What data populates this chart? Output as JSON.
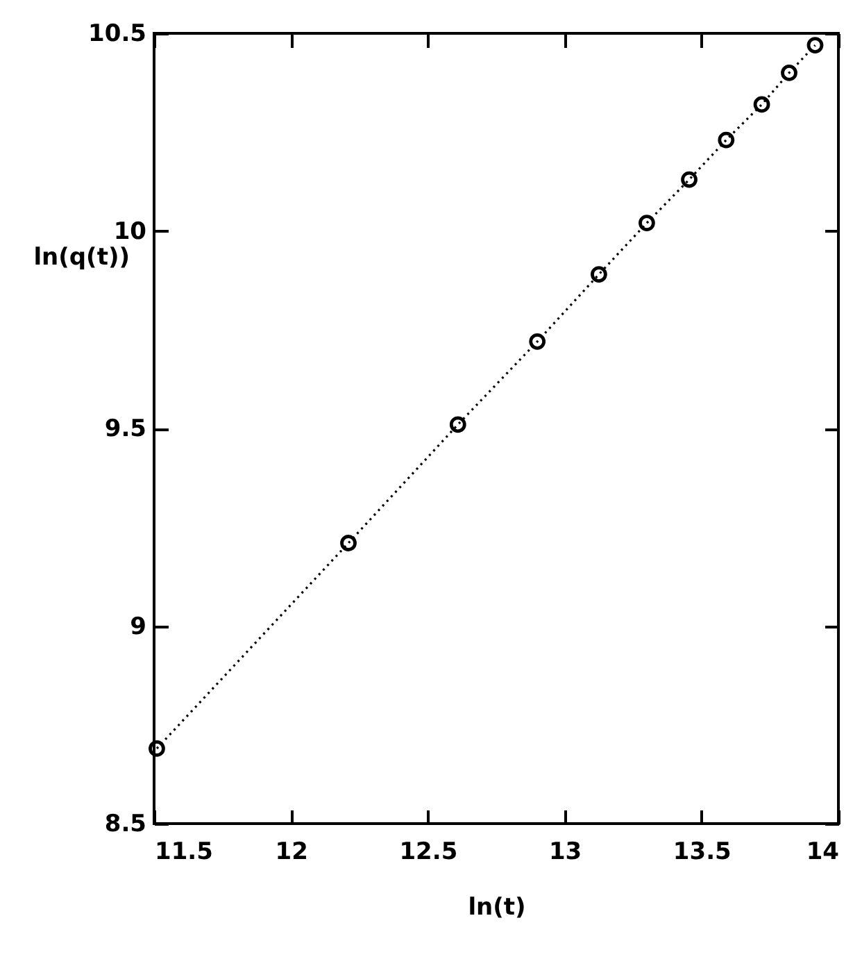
{
  "chart_data": {
    "type": "line",
    "xlabel": "ln(t)",
    "ylabel": "ln(q(t))",
    "xlim": [
      11.5,
      14
    ],
    "xticks": [
      11.5,
      12,
      12.5,
      13,
      13.5,
      14
    ],
    "ylim": [
      8.5,
      10.5
    ],
    "yticks": [
      8.5,
      9,
      9.5,
      10,
      10.5
    ],
    "x": [
      11.51,
      12.21,
      12.61,
      12.9,
      13.125,
      13.3,
      13.455,
      13.59,
      13.72,
      13.82,
      13.915
    ],
    "series": [
      {
        "color": "#000000",
        "values": [
          8.69,
          9.21,
          9.51,
          9.72,
          9.89,
          10.02,
          10.13,
          10.23,
          10.32,
          10.4,
          10.47
        ]
      }
    ],
    "marker": "circle",
    "line_style": "dotted",
    "grid": false
  }
}
